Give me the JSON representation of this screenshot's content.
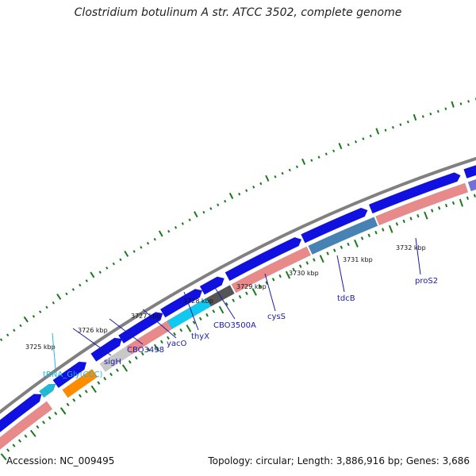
{
  "title": "Clostridium botulinum A str. ATCC 3502, complete genome",
  "accession": "Accession: NC_009495",
  "topology": "Topology: circular; Length: 3,886,916 bp; Genes: 3,686",
  "scale_labels": [
    "3725 kbp",
    "3726 kbp",
    "3727 kbp",
    "3728 kbp",
    "3729 kbp",
    "3730 kbp",
    "3731 kbp",
    "3732 kbp"
  ],
  "gene_labels": [
    "tRNA_Gly(CCC)",
    "sigH",
    "CBO3498",
    "yacO",
    "thyX",
    "CBO3500A",
    "cysS",
    "tdcB",
    "proS2"
  ],
  "colors": {
    "forward_gene": "#1010e0",
    "rrna_pink": "#e88a8a",
    "orange_gene": "#ff8c00",
    "cyan_gene": "#10c8f0",
    "steel_gene": "#4682b4",
    "gray_gene": "#c8c8c8",
    "dark_gene": "#555555",
    "purple_gene": "#7070d8",
    "backbone": "#808080",
    "tick_green": "#1a7a1a",
    "label_blue": "#1a1aa8",
    "label_cyan": "#22b8d8"
  }
}
